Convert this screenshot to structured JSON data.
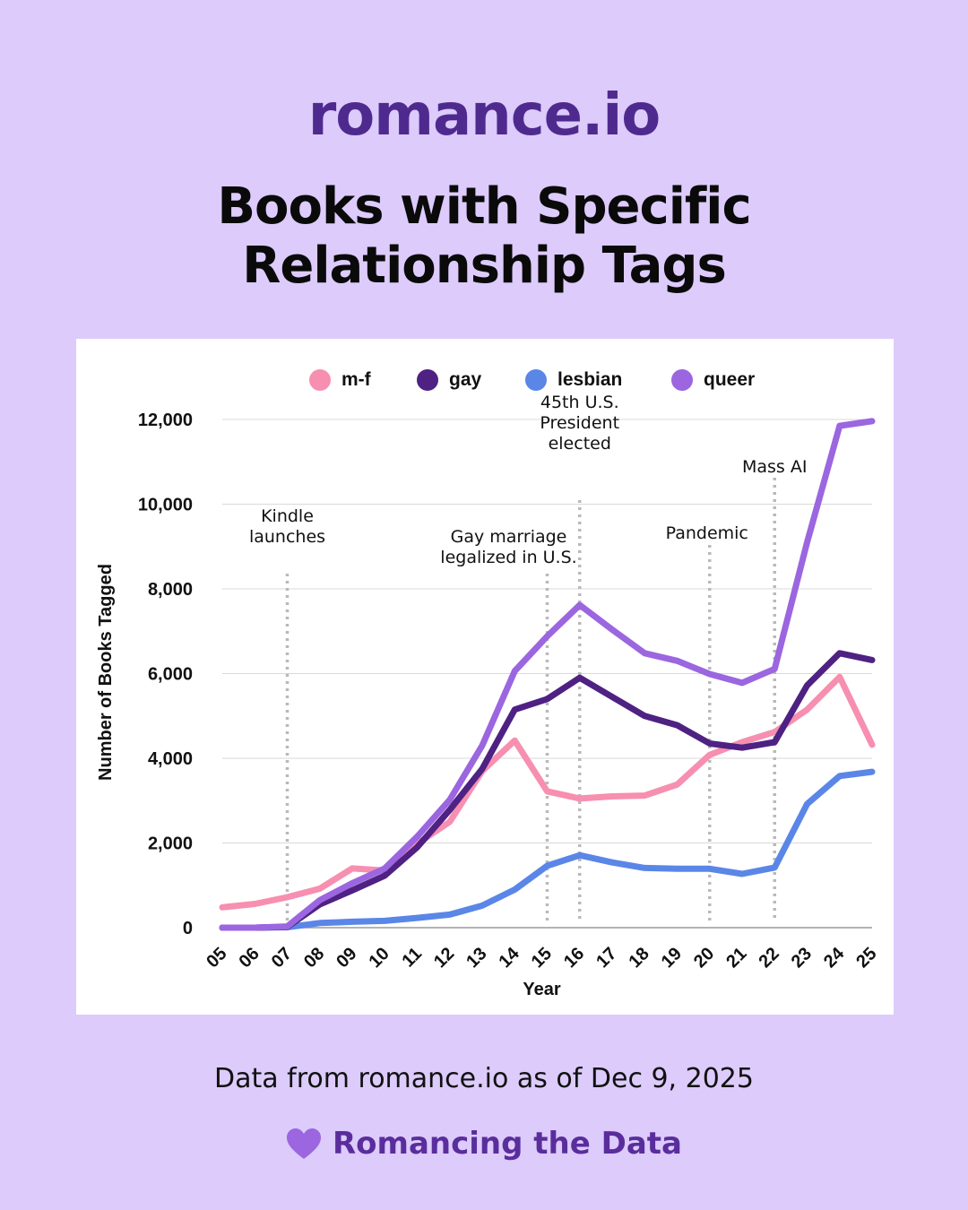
{
  "header": {
    "brand": "romance.io",
    "title_line1": "Books with Specific",
    "title_line2": "Relationship Tags"
  },
  "footer": {
    "note": "Data from romance.io as of Dec 9, 2025",
    "signature": "Romancing the Data",
    "signature_icon": "heart-icon"
  },
  "colors": {
    "background": "#dccbfb",
    "brand": "#4f2a8e",
    "mf": "#f78fb0",
    "gay": "#4e2183",
    "lesbian": "#5a86e8",
    "queer": "#9b66e0"
  },
  "chart_data": {
    "type": "line",
    "title": "",
    "xlabel": "Year",
    "ylabel": "Number of Books Tagged",
    "x": [
      "05",
      "06",
      "07",
      "08",
      "09",
      "10",
      "11",
      "12",
      "13",
      "14",
      "15",
      "16",
      "17",
      "18",
      "19",
      "20",
      "21",
      "22",
      "23",
      "24",
      "25"
    ],
    "ylim": [
      0,
      12000
    ],
    "yticks": [
      0,
      2000,
      4000,
      6000,
      8000,
      10000,
      12000
    ],
    "ytick_labels": [
      "0",
      "2,000",
      "4,000",
      "6,000",
      "8,000",
      "10,000",
      "12,000"
    ],
    "grid": true,
    "legend_position": "top",
    "series": [
      {
        "name": "m-f",
        "color": "#f78fb0",
        "values": [
          480,
          560,
          720,
          920,
          1400,
          1350,
          1980,
          2500,
          3700,
          4420,
          3220,
          3050,
          3100,
          3120,
          3380,
          4080,
          4380,
          4620,
          5150,
          5920,
          4320
        ]
      },
      {
        "name": "gay",
        "color": "#4e2183",
        "values": [
          0,
          0,
          20,
          550,
          880,
          1230,
          1900,
          2780,
          3750,
          5150,
          5400,
          5900,
          5450,
          5000,
          4780,
          4350,
          4250,
          4380,
          5720,
          6480,
          6320
        ]
      },
      {
        "name": "lesbian",
        "color": "#5a86e8",
        "values": [
          0,
          0,
          10,
          110,
          140,
          160,
          230,
          310,
          520,
          900,
          1460,
          1710,
          1540,
          1410,
          1390,
          1390,
          1270,
          1420,
          2920,
          3580,
          3680
        ]
      },
      {
        "name": "queer",
        "color": "#9b66e0",
        "values": [
          0,
          0,
          30,
          650,
          1050,
          1400,
          2150,
          3020,
          4300,
          6060,
          6880,
          7620,
          7040,
          6480,
          6300,
          5990,
          5780,
          6110,
          9100,
          11850,
          11960
        ]
      }
    ],
    "annotations": [
      {
        "x": "07",
        "lines": [
          "Kindle",
          "launches"
        ]
      },
      {
        "x": "15",
        "lines": [
          "Gay marriage",
          "legalized in U.S."
        ]
      },
      {
        "x": "16",
        "lines": [
          "45th U.S.",
          "President",
          "elected"
        ]
      },
      {
        "x": "20",
        "lines": [
          "Pandemic"
        ]
      },
      {
        "x": "22",
        "lines": [
          "Mass AI"
        ]
      }
    ]
  }
}
